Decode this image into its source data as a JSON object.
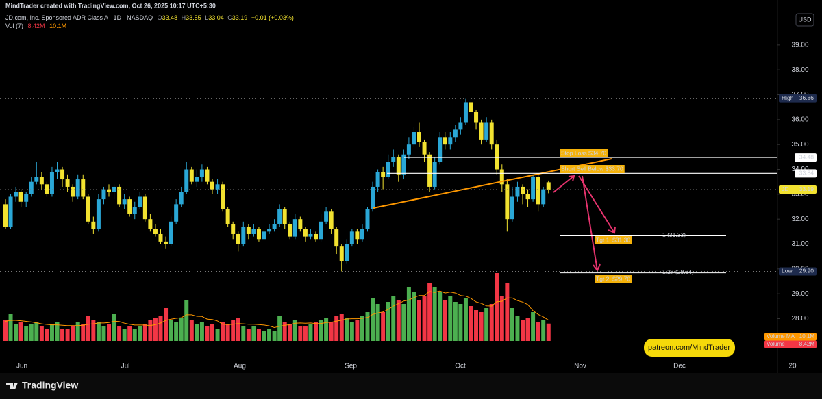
{
  "header": {
    "credit": "MindTrader created with TradingView.com, Oct 26, 2025 10:17 UTC+5:30"
  },
  "chart_data": {
    "type": "candlestick",
    "title": "JD.com, Inc. Sponsored ADR Class A · 1D · NASDAQ",
    "ohlc_legend": [
      {
        "key": "O",
        "value": 33.48
      },
      {
        "key": "H",
        "value": 33.55
      },
      {
        "key": "L",
        "value": 33.04
      },
      {
        "key": "C",
        "value": 33.19
      }
    ],
    "change": "+0.01 (+0.03%)",
    "currency": "USD",
    "volume_legend": {
      "name": "Vol (7)",
      "value": "8.42M",
      "ma": "10.1M"
    },
    "up_color": "#2aa7d6",
    "down_color": "#f2e230",
    "ylim": [
      26.5,
      40.4
    ],
    "yticks": [
      {
        "value": 28,
        "label": "28.00"
      },
      {
        "value": 29,
        "label": "29.00"
      },
      {
        "value": 30,
        "label": "30.00"
      },
      {
        "value": 31,
        "label": "31.00"
      },
      {
        "value": 32,
        "label": "32.00"
      },
      {
        "value": 33,
        "label": "33.00"
      },
      {
        "value": 34,
        "label": "34.00"
      },
      {
        "value": 35,
        "label": "35.00"
      },
      {
        "value": 36,
        "label": "36.00"
      },
      {
        "value": 37,
        "label": "37.00"
      },
      {
        "value": 38,
        "label": "38.00"
      },
      {
        "value": 39,
        "label": "39.00"
      }
    ],
    "xticks": [
      "Jun",
      "Jul",
      "Aug",
      "Sep",
      "Oct",
      "Nov",
      "Dec",
      "20"
    ],
    "open": [
      32.6,
      31.7,
      32.9,
      33.1,
      32.7,
      33.0,
      33.5,
      33.7,
      33.4,
      33.0,
      33.9,
      34.0,
      33.6,
      33.3,
      32.9,
      33.6,
      32.9,
      31.9,
      31.6,
      32.8,
      33.2,
      33.1,
      33.3,
      32.6,
      32.8,
      32.2,
      32.5,
      32.9,
      32.0,
      31.6,
      31.4,
      31.1,
      31.0,
      31.9,
      32.6,
      33.1,
      34.0,
      33.5,
      33.7,
      34.0,
      33.5,
      33.2,
      33.4,
      32.4,
      31.8,
      31.4,
      31.0,
      31.7,
      31.4,
      31.6,
      31.2,
      31.5,
      31.6,
      31.8,
      32.4,
      31.8,
      31.3,
      32.0,
      31.6,
      31.3,
      31.4,
      31.2,
      31.9,
      32.3,
      31.6,
      30.9,
      30.3,
      31.0,
      31.5,
      31.2,
      31.6,
      32.4,
      33.3,
      33.9,
      33.7,
      34.3,
      34.5,
      33.8,
      34.6,
      35.0,
      35.5,
      35.1,
      34.6,
      33.3,
      34.3,
      35.3,
      35.0,
      35.3,
      35.6,
      35.9,
      36.7,
      36.3,
      35.9,
      35.2,
      35.9,
      35.0,
      34.0,
      33.4,
      32.0,
      32.9,
      33.3,
      33.0,
      32.8,
      33.7,
      32.6,
      33.48
    ],
    "high": [
      32.8,
      33.0,
      33.3,
      33.2,
      33.1,
      33.7,
      34.3,
      33.9,
      33.5,
      34.1,
      34.3,
      34.1,
      33.8,
      33.4,
      33.8,
      33.8,
      33.0,
      32.1,
      33.0,
      33.3,
      33.4,
      33.4,
      33.4,
      33.0,
      32.9,
      32.7,
      33.1,
      33.0,
      32.2,
      31.8,
      31.6,
      31.3,
      32.1,
      32.8,
      33.3,
      34.3,
      34.1,
      34.0,
      34.2,
      34.1,
      33.6,
      33.6,
      33.5,
      32.5,
      31.9,
      31.5,
      31.9,
      31.8,
      31.8,
      31.7,
      31.7,
      31.8,
      32.0,
      32.6,
      32.5,
      31.9,
      32.2,
      32.1,
      31.7,
      31.6,
      31.5,
      32.2,
      32.5,
      32.4,
      31.7,
      31.0,
      31.2,
      31.6,
      31.6,
      31.8,
      32.5,
      33.5,
      34.0,
      34.1,
      34.6,
      34.8,
      34.6,
      34.8,
      35.3,
      35.7,
      35.9,
      35.2,
      34.7,
      34.5,
      35.5,
      35.5,
      35.5,
      35.8,
      36.1,
      36.86,
      36.8,
      36.4,
      36.0,
      36.1,
      36.0,
      35.2,
      34.2,
      33.6,
      33.3,
      33.5,
      33.4,
      33.2,
      33.8,
      33.8,
      33.3,
      33.55
    ],
    "low": [
      31.6,
      31.6,
      32.7,
      32.5,
      32.5,
      32.9,
      33.4,
      33.2,
      32.9,
      32.9,
      33.6,
      33.3,
      33.1,
      32.7,
      32.8,
      32.8,
      31.8,
      31.4,
      31.5,
      32.6,
      32.9,
      32.8,
      32.5,
      32.4,
      32.1,
      32.0,
      32.4,
      31.9,
      31.5,
      31.3,
      31.0,
      30.8,
      30.9,
      31.8,
      32.5,
      33.0,
      33.4,
      33.3,
      33.5,
      33.4,
      33.0,
      33.0,
      32.3,
      31.7,
      31.2,
      30.7,
      30.9,
      31.2,
      31.3,
      31.1,
      31.0,
      31.4,
      31.5,
      31.7,
      31.6,
      31.2,
      31.2,
      31.5,
      31.1,
      31.2,
      31.1,
      31.1,
      31.8,
      31.4,
      30.6,
      29.9,
      30.2,
      30.9,
      31.0,
      31.1,
      31.5,
      32.3,
      33.1,
      33.2,
      33.6,
      34.1,
      33.5,
      33.6,
      34.4,
      34.9,
      34.9,
      34.3,
      33.1,
      33.2,
      34.2,
      34.8,
      34.8,
      35.1,
      35.4,
      35.8,
      35.9,
      35.6,
      35.0,
      35.1,
      34.8,
      33.8,
      33.1,
      31.5,
      31.9,
      32.7,
      32.6,
      32.5,
      32.7,
      32.3,
      32.5,
      33.04
    ],
    "close": [
      31.7,
      32.9,
      33.1,
      32.7,
      33.0,
      33.5,
      33.7,
      33.4,
      33.0,
      33.9,
      34.0,
      33.6,
      33.3,
      32.9,
      33.6,
      32.9,
      31.9,
      31.6,
      32.8,
      33.2,
      33.1,
      33.3,
      32.6,
      32.8,
      32.2,
      32.5,
      32.9,
      32.0,
      31.6,
      31.4,
      31.1,
      31.0,
      31.9,
      32.6,
      33.1,
      34.0,
      33.5,
      33.7,
      34.0,
      33.5,
      33.2,
      33.4,
      32.4,
      31.8,
      31.4,
      31.0,
      31.7,
      31.4,
      31.6,
      31.2,
      31.5,
      31.6,
      31.8,
      32.4,
      31.8,
      31.3,
      32.0,
      31.6,
      31.3,
      31.4,
      31.2,
      31.9,
      32.3,
      31.6,
      30.9,
      30.3,
      31.0,
      31.5,
      31.2,
      31.6,
      32.4,
      33.3,
      33.9,
      33.7,
      34.3,
      34.5,
      33.8,
      34.6,
      35.0,
      35.5,
      35.1,
      34.6,
      33.3,
      34.3,
      35.3,
      35.0,
      35.3,
      35.6,
      35.9,
      36.7,
      36.3,
      35.9,
      35.2,
      35.9,
      35.0,
      34.0,
      33.4,
      32.0,
      32.9,
      33.3,
      33.0,
      32.8,
      33.7,
      32.6,
      33.2,
      33.19
    ],
    "volume": {
      "up_color": "#4caf50",
      "down_color": "#f23645",
      "ma_color": "#ff9800",
      "values": [
        10,
        13,
        8,
        9,
        7,
        8,
        9,
        7,
        6,
        8,
        9,
        6,
        6,
        7,
        9,
        8,
        12,
        10,
        9,
        7,
        8,
        13,
        7,
        6,
        7,
        6,
        7,
        8,
        10,
        11,
        12,
        16,
        10,
        9,
        11,
        20,
        10,
        8,
        9,
        7,
        8,
        6,
        9,
        8,
        10,
        11,
        7,
        6,
        7,
        6,
        5,
        6,
        5,
        12,
        9,
        8,
        10,
        7,
        7,
        8,
        9,
        10,
        11,
        9,
        12,
        13,
        11,
        9,
        10,
        12,
        14,
        21,
        18,
        14,
        19,
        22,
        20,
        18,
        26,
        24,
        20,
        22,
        28,
        26,
        24,
        20,
        22,
        19,
        18,
        21,
        17,
        15,
        14,
        16,
        18,
        33,
        22,
        28,
        16,
        12,
        10,
        11,
        14,
        9,
        10,
        8.42
      ],
      "ma": [
        9.5,
        10,
        10,
        9.8,
        9.5,
        9.2,
        8.8,
        8.3,
        8,
        7.8,
        7.8,
        7.6,
        7.4,
        7.4,
        7.4,
        7.6,
        8.1,
        8.3,
        8.7,
        8.7,
        8.9,
        9.6,
        9.4,
        8.6,
        8.1,
        7.7,
        7.7,
        7.7,
        7.4,
        7.9,
        8.7,
        10,
        10.6,
        11,
        11.3,
        12.7,
        12.7,
        12,
        11.9,
        10.6,
        10.4,
        9.7,
        8.1,
        7.9,
        8.1,
        8.4,
        8.3,
        8.1,
        8.1,
        7.9,
        7.7,
        7.3,
        6.5,
        7.1,
        7.6,
        7.9,
        8.6,
        8.7,
        8.6,
        8.7,
        8.4,
        8.4,
        8.9,
        9.1,
        9.6,
        10.1,
        10.7,
        10.8,
        10.8,
        11,
        11.4,
        12.9,
        13.6,
        14.1,
        15.3,
        17,
        18.2,
        19.4,
        19.9,
        21.1,
        22.1,
        22.1,
        24.1,
        23.6,
        24.3,
        23.3,
        23.8,
        23.3,
        22.1,
        21.8,
        20.7,
        19,
        18.3,
        17.1,
        17,
        19.1,
        19.3,
        20.9,
        20.9,
        19.6,
        18.9,
        17.7,
        14.7,
        12.9,
        11.7,
        10.1
      ],
      "tags": [
        {
          "name": "Volume MA",
          "label": "10.1M"
        },
        {
          "name": "Volume",
          "label": "8.42M"
        }
      ]
    },
    "price_tags": [
      {
        "name": "High",
        "value": 36.86,
        "style": "dotted"
      },
      {
        "value": 34.48,
        "style": "solid"
      },
      {
        "value": 33.84,
        "style": "solid"
      },
      {
        "name": "JD",
        "value": 33.19,
        "style": "dotted"
      },
      {
        "name": "Low",
        "value": 29.9,
        "label": "29.90",
        "style": "dotted"
      }
    ],
    "fib_levels": [
      {
        "label": "1 (31.33)",
        "value": 31.33
      },
      {
        "label": "1.27 (29.84)",
        "value": 29.84
      }
    ],
    "annotations": [
      "Stop Loss $34.70",
      "Short Sell Below $33.70",
      "Tgt 1: $31.30",
      "Tgt 2: $29.70"
    ]
  },
  "promo": "patreon.com/MindTrader",
  "brand": "TradingView"
}
